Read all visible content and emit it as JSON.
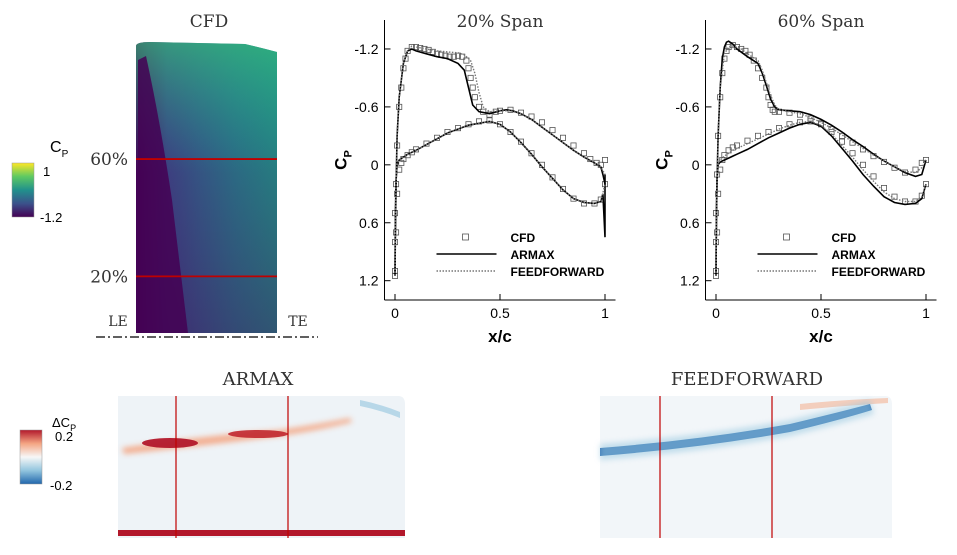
{
  "colors": {
    "viridis_low": "#440154",
    "viridis_high": "#fde725",
    "section_line": "#c00000",
    "diff_red": "#b2182b",
    "diff_blue": "#2166ac"
  },
  "cfd_panel": {
    "title": "CFD",
    "sections": [
      {
        "label": "60%",
        "span_fraction": 0.6
      },
      {
        "label": "20%",
        "span_fraction": 0.2
      }
    ],
    "le_label": "LE",
    "te_label": "TE"
  },
  "cp_colorbar": {
    "label_main": "C",
    "label_sub": "P",
    "max_label": "1",
    "min_label": "-1.2"
  },
  "diff_colorbar": {
    "label_prefix": "ΔC",
    "label_sub": "P",
    "max_label": "0.2",
    "min_label": "-0.2"
  },
  "diff_panels": [
    {
      "title": "ARMAX"
    },
    {
      "title": "FEEDFORWARD"
    }
  ],
  "chart_data": [
    {
      "type": "line",
      "title": "20% Span",
      "xlabel": "x/c",
      "ylabel_main": "C",
      "ylabel_sub": "P",
      "xlim": [
        -0.05,
        1.05
      ],
      "ylim": [
        1.4,
        -1.5
      ],
      "xticks": [
        0,
        0.5,
        1
      ],
      "xtick_labels": [
        "0",
        "0.5",
        "1"
      ],
      "yticks": [
        -1.2,
        -0.6,
        0,
        0.6,
        1.2
      ],
      "ytick_labels": [
        "-1.2",
        "-0.6",
        "0",
        "0.6",
        "1.2"
      ],
      "legend": [
        "CFD",
        "ARMAX",
        "FEEDFORWARD"
      ],
      "legend_position": "bottom-right",
      "series": [
        {
          "name": "CFD",
          "style": "markers",
          "x": [
            0,
            0,
            0,
            0.005,
            0.01,
            0.02,
            0.03,
            0.04,
            0.05,
            0.06,
            0.08,
            0.1,
            0.12,
            0.14,
            0.16,
            0.18,
            0.2,
            0.22,
            0.24,
            0.26,
            0.28,
            0.3,
            0.32,
            0.34,
            0.35,
            0.36,
            0.37,
            0.38,
            0.4,
            0.42,
            0.45,
            0.48,
            0.5,
            0.55,
            0.6,
            0.65,
            0.7,
            0.75,
            0.8,
            0.85,
            0.9,
            0.93,
            0.96,
            0.98,
            1.0,
            0,
            0.005,
            0.01,
            0.02,
            0.03,
            0.04,
            0.06,
            0.08,
            0.1,
            0.15,
            0.2,
            0.25,
            0.3,
            0.35,
            0.4,
            0.45,
            0.5,
            0.55,
            0.6,
            0.65,
            0.7,
            0.75,
            0.8,
            0.85,
            0.9,
            0.95,
            0.98,
            1.0
          ],
          "y": [
            1.1,
            0.8,
            0.5,
            0.2,
            -0.2,
            -0.6,
            -0.8,
            -1.0,
            -1.1,
            -1.18,
            -1.22,
            -1.22,
            -1.21,
            -1.2,
            -1.19,
            -1.17,
            -1.15,
            -1.14,
            -1.13,
            -1.12,
            -1.12,
            -1.13,
            -1.12,
            -1.08,
            -1.0,
            -0.9,
            -0.8,
            -0.7,
            -0.6,
            -0.55,
            -0.52,
            -0.55,
            -0.56,
            -0.57,
            -0.54,
            -0.5,
            -0.44,
            -0.36,
            -0.28,
            -0.2,
            -0.12,
            -0.06,
            -0.02,
            0.0,
            -0.05,
            1.15,
            0.7,
            0.3,
            0.05,
            -0.02,
            -0.06,
            -0.1,
            -0.13,
            -0.16,
            -0.22,
            -0.28,
            -0.34,
            -0.38,
            -0.42,
            -0.45,
            -0.46,
            -0.42,
            -0.34,
            -0.24,
            -0.12,
            0.0,
            0.13,
            0.25,
            0.35,
            0.4,
            0.4,
            0.36,
            0.2
          ]
        },
        {
          "name": "ARMAX",
          "style": "solid",
          "x": [
            0,
            0.002,
            0.005,
            0.01,
            0.02,
            0.04,
            0.06,
            0.08,
            0.1,
            0.15,
            0.2,
            0.25,
            0.3,
            0.33,
            0.35,
            0.37,
            0.4,
            0.45,
            0.5,
            0.53,
            0.56,
            0.6,
            0.65,
            0.7,
            0.75,
            0.8,
            0.85,
            0.9,
            0.95,
            0.98,
            0.99,
            1.0
          ],
          "y": [
            1.15,
            0.7,
            0.2,
            -0.3,
            -0.7,
            -1.05,
            -1.18,
            -1.2,
            -1.18,
            -1.15,
            -1.12,
            -1.1,
            -1.05,
            -0.98,
            -0.8,
            -0.62,
            -0.55,
            -0.53,
            -0.56,
            -0.57,
            -0.56,
            -0.53,
            -0.47,
            -0.39,
            -0.31,
            -0.23,
            -0.15,
            -0.08,
            -0.02,
            0.02,
            0.1,
            0.2
          ]
        },
        {
          "name": "ARMAX",
          "style": "solid",
          "x": [
            0,
            0.002,
            0.005,
            0.01,
            0.02,
            0.04,
            0.06,
            0.08,
            0.1,
            0.15,
            0.2,
            0.25,
            0.3,
            0.35,
            0.4,
            0.45,
            0.5,
            0.55,
            0.6,
            0.65,
            0.7,
            0.75,
            0.8,
            0.85,
            0.9,
            0.95,
            0.98,
            0.99,
            1.0,
            1.0
          ],
          "y": [
            1.15,
            0.5,
            0.15,
            0.0,
            -0.05,
            -0.08,
            -0.11,
            -0.13,
            -0.15,
            -0.21,
            -0.27,
            -0.33,
            -0.37,
            -0.41,
            -0.43,
            -0.45,
            -0.42,
            -0.34,
            -0.23,
            -0.11,
            0.02,
            0.14,
            0.26,
            0.35,
            0.39,
            0.4,
            0.38,
            0.3,
            0.75,
            0.1
          ]
        },
        {
          "name": "FEEDFORWARD",
          "style": "dotted",
          "x": [
            0,
            0.002,
            0.005,
            0.01,
            0.02,
            0.04,
            0.06,
            0.08,
            0.1,
            0.15,
            0.2,
            0.25,
            0.3,
            0.33,
            0.36,
            0.38,
            0.4,
            0.42,
            0.45,
            0.5,
            0.55,
            0.6,
            0.65,
            0.7,
            0.75,
            0.8,
            0.85,
            0.9,
            0.95,
            0.98,
            1.0
          ],
          "y": [
            1.15,
            0.7,
            0.2,
            -0.3,
            -0.7,
            -1.05,
            -1.18,
            -1.23,
            -1.22,
            -1.2,
            -1.18,
            -1.17,
            -1.16,
            -1.14,
            -1.08,
            -0.95,
            -0.75,
            -0.6,
            -0.55,
            -0.56,
            -0.56,
            -0.53,
            -0.47,
            -0.39,
            -0.31,
            -0.23,
            -0.15,
            -0.08,
            -0.02,
            0.02,
            0.1
          ]
        },
        {
          "name": "FEEDFORWARD",
          "style": "dotted",
          "x": [
            0,
            0.002,
            0.005,
            0.01,
            0.02,
            0.04,
            0.06,
            0.08,
            0.1,
            0.15,
            0.2,
            0.25,
            0.3,
            0.35,
            0.4,
            0.45,
            0.5,
            0.55,
            0.6,
            0.65,
            0.7,
            0.75,
            0.8,
            0.85,
            0.9,
            0.95,
            0.98,
            1.0
          ],
          "y": [
            1.15,
            0.5,
            0.15,
            0.0,
            -0.05,
            -0.08,
            -0.11,
            -0.13,
            -0.15,
            -0.21,
            -0.27,
            -0.33,
            -0.37,
            -0.41,
            -0.43,
            -0.45,
            -0.42,
            -0.34,
            -0.23,
            -0.11,
            0.02,
            0.14,
            0.26,
            0.35,
            0.39,
            0.4,
            0.38,
            0.2
          ]
        }
      ]
    },
    {
      "type": "line",
      "title": "60% Span",
      "xlabel": "x/c",
      "ylabel_main": "C",
      "ylabel_sub": "P",
      "xlim": [
        -0.05,
        1.05
      ],
      "ylim": [
        1.4,
        -1.5
      ],
      "xticks": [
        0,
        0.5,
        1
      ],
      "xtick_labels": [
        "0",
        "0.5",
        "1"
      ],
      "yticks": [
        -1.2,
        -0.6,
        0,
        0.6,
        1.2
      ],
      "ytick_labels": [
        "-1.2",
        "-0.6",
        "0",
        "0.6",
        "1.2"
      ],
      "legend": [
        "CFD",
        "ARMAX",
        "FEEDFORWARD"
      ],
      "legend_position": "bottom-right",
      "series": [
        {
          "name": "CFD",
          "style": "markers",
          "x": [
            0,
            0,
            0,
            0.005,
            0.01,
            0.02,
            0.03,
            0.04,
            0.05,
            0.06,
            0.08,
            0.1,
            0.12,
            0.14,
            0.16,
            0.18,
            0.2,
            0.22,
            0.24,
            0.25,
            0.26,
            0.27,
            0.28,
            0.3,
            0.35,
            0.4,
            0.45,
            0.5,
            0.55,
            0.6,
            0.65,
            0.7,
            0.75,
            0.8,
            0.85,
            0.9,
            0.95,
            0.98,
            1.0,
            0,
            0.005,
            0.01,
            0.02,
            0.03,
            0.04,
            0.06,
            0.08,
            0.1,
            0.15,
            0.2,
            0.25,
            0.3,
            0.35,
            0.4,
            0.45,
            0.5,
            0.55,
            0.6,
            0.65,
            0.7,
            0.75,
            0.8,
            0.85,
            0.9,
            0.95,
            0.98,
            1.0
          ],
          "y": [
            1.1,
            0.8,
            0.5,
            0.1,
            -0.3,
            -0.7,
            -0.95,
            -1.1,
            -1.18,
            -1.22,
            -1.24,
            -1.22,
            -1.2,
            -1.18,
            -1.14,
            -1.08,
            -1.0,
            -0.9,
            -0.8,
            -0.7,
            -0.62,
            -0.57,
            -0.55,
            -0.55,
            -0.54,
            -0.52,
            -0.48,
            -0.43,
            -0.37,
            -0.3,
            -0.23,
            -0.16,
            -0.09,
            -0.03,
            0.03,
            0.08,
            0.05,
            -0.02,
            -0.05,
            1.15,
            0.7,
            0.3,
            0.05,
            -0.05,
            -0.1,
            -0.15,
            -0.18,
            -0.2,
            -0.25,
            -0.3,
            -0.34,
            -0.38,
            -0.42,
            -0.44,
            -0.45,
            -0.42,
            -0.34,
            -0.24,
            -0.12,
            0.0,
            0.12,
            0.24,
            0.33,
            0.38,
            0.38,
            0.32,
            0.2
          ]
        },
        {
          "name": "ARMAX",
          "style": "solid",
          "x": [
            0,
            0.002,
            0.005,
            0.01,
            0.02,
            0.03,
            0.04,
            0.05,
            0.06,
            0.08,
            0.1,
            0.15,
            0.2,
            0.22,
            0.24,
            0.26,
            0.28,
            0.3,
            0.35,
            0.4,
            0.45,
            0.5,
            0.55,
            0.6,
            0.65,
            0.7,
            0.75,
            0.8,
            0.85,
            0.9,
            0.95,
            0.98,
            1.0
          ],
          "y": [
            1.15,
            0.6,
            0.2,
            -0.3,
            -0.8,
            -1.1,
            -1.22,
            -1.27,
            -1.28,
            -1.25,
            -1.2,
            -1.12,
            -1.05,
            -0.95,
            -0.82,
            -0.68,
            -0.6,
            -0.57,
            -0.56,
            -0.55,
            -0.52,
            -0.47,
            -0.41,
            -0.34,
            -0.26,
            -0.19,
            -0.11,
            -0.04,
            0.02,
            0.08,
            0.12,
            0.1,
            -0.05
          ]
        },
        {
          "name": "ARMAX",
          "style": "solid",
          "x": [
            0,
            0.002,
            0.005,
            0.01,
            0.02,
            0.04,
            0.06,
            0.08,
            0.1,
            0.15,
            0.2,
            0.25,
            0.3,
            0.35,
            0.4,
            0.45,
            0.5,
            0.55,
            0.6,
            0.65,
            0.7,
            0.75,
            0.8,
            0.85,
            0.9,
            0.95,
            0.98,
            1.0
          ],
          "y": [
            1.15,
            0.5,
            0.15,
            0.0,
            -0.03,
            -0.05,
            -0.07,
            -0.09,
            -0.11,
            -0.16,
            -0.22,
            -0.28,
            -0.33,
            -0.38,
            -0.42,
            -0.44,
            -0.4,
            -0.3,
            -0.17,
            -0.04,
            0.1,
            0.22,
            0.33,
            0.39,
            0.41,
            0.4,
            0.35,
            0.2
          ]
        },
        {
          "name": "FEEDFORWARD",
          "style": "dotted",
          "x": [
            0,
            0.002,
            0.005,
            0.01,
            0.02,
            0.04,
            0.06,
            0.08,
            0.1,
            0.12,
            0.15,
            0.2,
            0.22,
            0.24,
            0.26,
            0.28,
            0.3,
            0.35,
            0.4,
            0.45,
            0.5,
            0.55,
            0.6,
            0.65,
            0.7,
            0.75,
            0.8,
            0.85,
            0.9,
            0.95,
            0.98,
            1.0
          ],
          "y": [
            1.15,
            0.6,
            0.2,
            -0.3,
            -0.8,
            -1.15,
            -1.22,
            -1.23,
            -1.22,
            -1.2,
            -1.15,
            -1.08,
            -0.98,
            -0.85,
            -0.72,
            -0.62,
            -0.57,
            -0.55,
            -0.53,
            -0.49,
            -0.44,
            -0.38,
            -0.31,
            -0.24,
            -0.17,
            -0.1,
            -0.04,
            0.02,
            0.07,
            0.08,
            0.03,
            -0.05
          ]
        },
        {
          "name": "FEEDFORWARD",
          "style": "dotted",
          "x": [
            0,
            0.002,
            0.005,
            0.01,
            0.02,
            0.04,
            0.06,
            0.08,
            0.1,
            0.15,
            0.2,
            0.25,
            0.3,
            0.35,
            0.4,
            0.45,
            0.5,
            0.55,
            0.6,
            0.65,
            0.7,
            0.75,
            0.8,
            0.85,
            0.9,
            0.95,
            0.98,
            1.0
          ],
          "y": [
            1.15,
            0.5,
            0.15,
            0.0,
            -0.05,
            -0.09,
            -0.12,
            -0.15,
            -0.17,
            -0.22,
            -0.27,
            -0.32,
            -0.37,
            -0.41,
            -0.44,
            -0.45,
            -0.41,
            -0.32,
            -0.2,
            -0.08,
            0.05,
            0.17,
            0.28,
            0.35,
            0.38,
            0.38,
            0.33,
            0.2
          ]
        }
      ]
    }
  ]
}
